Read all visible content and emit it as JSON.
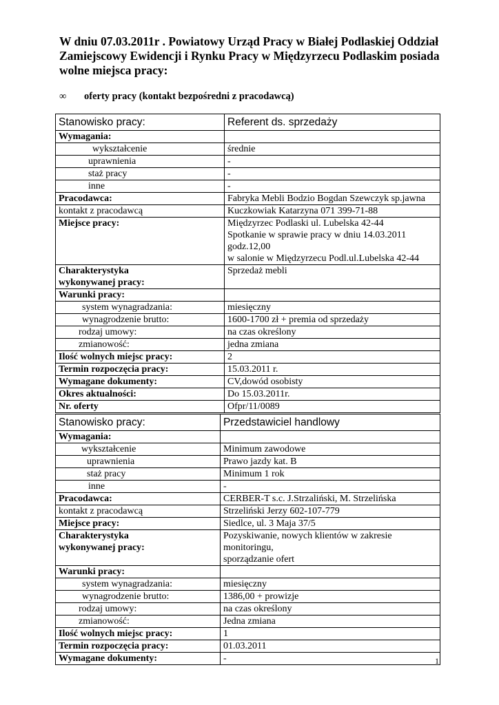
{
  "title": "W dniu 07.03.2011r .  Powiatowy Urząd Pracy w Białej Podlaskiej Oddział Zamiejscowy Ewidencji i Rynku Pracy w Międzyrzecu Podlaskim posiada wolne miejsca pracy:",
  "bullet": {
    "symbol": "∞",
    "text": "oferty pracy (kontakt bezpośredni z pracodawcą)"
  },
  "offers": [
    {
      "rows": [
        {
          "label": "Stanowisko pracy:",
          "value": "Referent ds. sprzedaży",
          "head": true
        },
        {
          "label": "Wymagania:",
          "value": "",
          "bold": true
        },
        {
          "label": "wykształcenie",
          "value": "średnie",
          "indent": 53
        },
        {
          "label": "uprawnienia",
          "value": "-",
          "indent": 47
        },
        {
          "label": "staż pracy",
          "value": "-",
          "indent": 47
        },
        {
          "label": "inne",
          "value": "-",
          "indent": 47
        },
        {
          "label": "Pracodawca:",
          "value": "Fabryka Mebli Bodzio Bogdan Szewczyk sp.jawna",
          "bold": true
        },
        {
          "label": "kontakt z pracodawcą",
          "value": "Kuczkowiak Katarzyna 071 399-71-88"
        },
        {
          "label": "Miejsce pracy:",
          "value": "Międzyrzec Podlaski ul.  Lubelska 42-44\nSpotkanie w sprawie pracy w dniu 14.03.2011 godz.12,00\nw salonie w Międzyrzecu Podl.ul.Lubelska 42-44",
          "bold": true
        },
        {
          "label": "Charakterystyka\nwykonywanej pracy:",
          "value": "Sprzedaż mebli",
          "bold": true
        },
        {
          "label": "Warunki pracy:",
          "value": "",
          "bold": true
        },
        {
          "label": "system wynagradzania:",
          "value": "miesięczny",
          "indent": 38
        },
        {
          "label": "wynagrodzenie brutto:",
          "value": "1600-1700 zł + premia od sprzedaży",
          "indent": 38
        },
        {
          "label": "rodzaj umowy:",
          "value": "na czas określony",
          "indent": 33
        },
        {
          "label": "zmianowość:",
          "value": "jedna zmiana",
          "indent": 33
        },
        {
          "label": "Ilość wolnych miejsc pracy:",
          "value": "2",
          "bold": true
        },
        {
          "label": "Termin rozpoczęcia pracy:",
          "value": "15.03.2011 r.",
          "bold": true
        },
        {
          "label": "Wymagane dokumenty:",
          "value": "CV,dowód osobisty",
          "bold": true
        },
        {
          "label": "Okres aktualności:",
          "value": "Do 15.03.2011r.",
          "bold": true
        },
        {
          "label": "Nr. oferty",
          "value": "Ofpr/11/0089",
          "bold": true
        }
      ]
    },
    {
      "rows": [
        {
          "label": "Stanowisko pracy:",
          "value": "Przedstawiciel handlowy",
          "head": true
        },
        {
          "label": "Wymagania:",
          "value": "",
          "bold": true
        },
        {
          "label": "wykształcenie",
          "value": "Minimum zawodowe",
          "indent": 37
        },
        {
          "label": "uprawnienia",
          "value": "Prawo jazdy kat. B",
          "indent": 45
        },
        {
          "label": "staż pracy",
          "value": " Minimum 1 rok",
          "indent": 45
        },
        {
          "label": "inne",
          "value": "-",
          "indent": 47
        },
        {
          "label": "Pracodawca:",
          "value": "CERBER-T s.c. J.Strzaliński, M. Strzelińska",
          "bold": true
        },
        {
          "label": "kontakt z pracodawcą",
          "value": "Strzeliński Jerzy 602-107-779"
        },
        {
          "label": "Miejsce pracy:",
          "value": "Siedlce, ul. 3 Maja 37/5",
          "bold": true
        },
        {
          "label": "Charakterystyka\nwykonywanej pracy:",
          "value": "Pozyskiwanie, nowych klientów w zakresie monitoringu,\nsporządzanie ofert",
          "bold": true
        },
        {
          "label": "Warunki pracy:",
          "value": "",
          "bold": true
        },
        {
          "label": "system wynagradzania:",
          "value": "miesięczny",
          "indent": 38
        },
        {
          "label": "wynagrodzenie brutto:",
          "value": "1386,00 + prowizje",
          "indent": 38
        },
        {
          "label": "rodzaj umowy:",
          "value": "na czas określony",
          "indent": 33
        },
        {
          "label": "zmianowość:",
          "value": "Jedna zmiana",
          "indent": 33
        },
        {
          "label": "Ilość wolnych miejsc pracy:",
          "value": "1",
          "bold": true
        },
        {
          "label": "Termin rozpoczęcia pracy:",
          "value": "01.03.2011",
          "bold": true
        },
        {
          "label": "Wymagane dokumenty:",
          "value": "-",
          "bold": true
        }
      ]
    }
  ],
  "page_number": "1"
}
